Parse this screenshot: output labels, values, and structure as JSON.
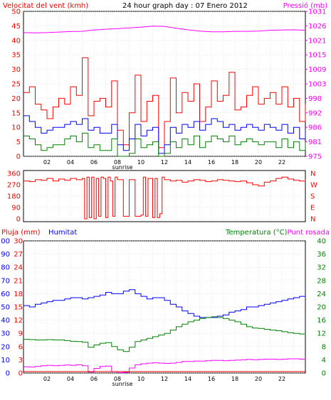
{
  "chart_data": [
    {
      "type": "line",
      "title": "24 hour graph day : 07 Enero 2012",
      "left_axis_label": "Velocitat del vent (kmh)",
      "right_axis_label": "Pressió (mb)",
      "left_ticks": [
        "0",
        "5",
        "10",
        "15",
        "20",
        "25",
        "30",
        "35",
        "40",
        "45",
        "50"
      ],
      "right_ticks": [
        "975",
        "981",
        "986",
        "992",
        "998",
        "1003",
        "1009",
        "1015",
        "1021",
        "1026",
        "1031"
      ],
      "ylim_left": [
        0,
        50
      ],
      "ylim_right": [
        975,
        1031
      ],
      "x_ticks": [
        "02",
        "04",
        "06",
        "08",
        "10",
        "12",
        "14",
        "16",
        "18",
        "20",
        "22"
      ],
      "x_annotation": "sunrise",
      "grid": true,
      "colors": {
        "gust": "#ff0000",
        "wind_avg": "#0000ff",
        "wind_min": "#008000",
        "pressure": "#ff00ff"
      },
      "series": [
        {
          "key": "pressure",
          "axis": "right",
          "x": [
            0,
            1,
            2,
            3,
            4,
            5,
            6,
            7,
            8,
            9,
            10,
            11,
            12,
            13,
            14,
            15,
            16,
            17,
            18,
            19,
            20,
            21,
            22,
            23,
            24
          ],
          "values": [
            1022.8,
            1022.7,
            1022.8,
            1023.0,
            1023.2,
            1023.3,
            1023.8,
            1024.1,
            1024.3,
            1024.6,
            1024.9,
            1025.3,
            1025.2,
            1024.5,
            1023.9,
            1023.4,
            1023.1,
            1023.1,
            1023.3,
            1023.3,
            1023.4,
            1023.7,
            1023.8,
            1023.9,
            1023.7
          ]
        },
        {
          "key": "gust",
          "axis": "left",
          "x": [
            0,
            0.5,
            1,
            1.5,
            2,
            2.5,
            3,
            3.5,
            4,
            4.5,
            5,
            5.5,
            6,
            6.5,
            7,
            7.5,
            8,
            8.5,
            9,
            9.5,
            10,
            10.5,
            11,
            11.5,
            12,
            12.5,
            13,
            13.5,
            14,
            14.5,
            15,
            15.5,
            16,
            16.5,
            17,
            17.5,
            18,
            18.5,
            19,
            19.5,
            20,
            20.5,
            21,
            21.5,
            22,
            22.5,
            23,
            23.5,
            24
          ],
          "values": [
            22,
            24,
            18,
            16,
            13,
            17,
            20,
            18,
            24,
            21,
            34,
            14,
            19,
            20,
            17,
            26,
            9,
            4,
            15,
            28,
            12,
            19,
            21,
            3,
            12,
            27,
            15,
            22,
            19,
            25,
            12,
            17,
            26,
            19,
            21,
            29,
            16,
            17,
            21,
            24,
            18,
            20,
            22,
            18,
            24,
            17,
            20,
            12,
            18
          ]
        },
        {
          "key": "wind_avg",
          "axis": "left",
          "x": [
            0,
            0.5,
            1,
            1.5,
            2,
            2.5,
            3,
            3.5,
            4,
            4.5,
            5,
            5.5,
            6,
            6.5,
            7,
            7.5,
            8,
            8.5,
            9,
            9.5,
            10,
            10.5,
            11,
            11.5,
            12,
            12.5,
            13,
            13.5,
            14,
            14.5,
            15,
            15.5,
            16,
            16.5,
            17,
            17.5,
            18,
            18.5,
            19,
            19.5,
            20,
            20.5,
            21,
            21.5,
            22,
            22.5,
            23,
            23.5,
            24
          ],
          "values": [
            14,
            12,
            10,
            8,
            9,
            10,
            10,
            11,
            12,
            11,
            13,
            9,
            10,
            8,
            8,
            11,
            4,
            2,
            6,
            11,
            7,
            9,
            10,
            1,
            4,
            10,
            8,
            11,
            10,
            12,
            9,
            11,
            13,
            12,
            10,
            11,
            9,
            10,
            11,
            10,
            9,
            11,
            10,
            9,
            11,
            8,
            10,
            6,
            9
          ]
        },
        {
          "key": "wind_min",
          "axis": "left",
          "x": [
            0,
            0.5,
            1,
            1.5,
            2,
            2.5,
            3,
            3.5,
            4,
            4.5,
            5,
            5.5,
            6,
            6.5,
            7,
            7.5,
            8,
            8.5,
            9,
            9.5,
            10,
            10.5,
            11,
            11.5,
            12,
            12.5,
            13,
            13.5,
            14,
            14.5,
            15,
            15.5,
            16,
            16.5,
            17,
            17.5,
            18,
            18.5,
            19,
            19.5,
            20,
            20.5,
            21,
            21.5,
            22,
            22.5,
            23,
            23.5,
            24
          ],
          "values": [
            7,
            6,
            4,
            2,
            3,
            4,
            4,
            6,
            7,
            5,
            8,
            3,
            4,
            2,
            2,
            6,
            0,
            0,
            1,
            6,
            3,
            4,
            5,
            0,
            1,
            5,
            3,
            6,
            4,
            7,
            3,
            5,
            7,
            6,
            5,
            7,
            4,
            5,
            6,
            5,
            4,
            5,
            5,
            3,
            6,
            3,
            5,
            2,
            5
          ]
        }
      ]
    },
    {
      "type": "line",
      "left_ticks": [
        "360",
        "270",
        "180",
        "90",
        "0"
      ],
      "ylim_left": [
        0,
        360
      ],
      "right_ticks": [
        "N",
        "W",
        "S",
        "E",
        "N"
      ],
      "grid": true,
      "colors": {
        "direction": "#ff0000"
      },
      "series": [
        {
          "key": "direction",
          "axis": "left",
          "x": [
            0,
            0.5,
            1,
            1.5,
            2,
            2.5,
            3,
            3.5,
            4,
            4.5,
            5,
            5.2,
            5.4,
            5.6,
            5.8,
            6,
            6.2,
            6.4,
            6.6,
            6.8,
            7,
            7.2,
            7.4,
            7.6,
            7.8,
            8,
            8.5,
            9,
            9.5,
            10,
            10.2,
            10.4,
            10.6,
            11,
            11.2,
            11.4,
            11.6,
            11.8,
            12,
            12.5,
            13,
            13.5,
            14,
            14.5,
            15,
            15.5,
            16,
            16.5,
            17,
            17.5,
            18,
            18.5,
            19,
            19.5,
            20,
            20.5,
            21,
            21.5,
            22,
            22.5,
            23,
            23.5,
            24
          ],
          "values": [
            300,
            295,
            310,
            305,
            320,
            300,
            315,
            305,
            320,
            310,
            320,
            0,
            330,
            10,
            330,
            0,
            320,
            20,
            330,
            320,
            10,
            330,
            300,
            20,
            330,
            310,
            20,
            310,
            20,
            30,
            330,
            20,
            320,
            10,
            320,
            10,
            40,
            330,
            310,
            300,
            305,
            290,
            300,
            310,
            305,
            295,
            300,
            310,
            305,
            300,
            295,
            300,
            285,
            270,
            260,
            290,
            300,
            320,
            330,
            315,
            305,
            300,
            310
          ]
        }
      ]
    },
    {
      "type": "line",
      "left_axis_label": "Pluja (mm)",
      "left_axis2_label": "Humitat",
      "right_axis_label": "Temperatura (°C)",
      "right_axis2_label": "Punt rosada",
      "left_ticks": [
        "0",
        "3",
        "6",
        "9",
        "12",
        "15",
        "18",
        "21",
        "24",
        "27",
        "30"
      ],
      "left2_ticks": [
        "0",
        "10",
        "20",
        "30",
        "40",
        "50",
        "60",
        "70",
        "80",
        "90",
        "100"
      ],
      "right_ticks": [
        "0",
        "4",
        "8",
        "12",
        "16",
        "20",
        "24",
        "28",
        "32",
        "36",
        "40"
      ],
      "ylim_rain": [
        0,
        30
      ],
      "ylim_humidity": [
        0,
        100
      ],
      "ylim_temp": [
        0,
        40
      ],
      "x_ticks": [
        "02",
        "04",
        "06",
        "08",
        "10",
        "12",
        "14",
        "16",
        "18",
        "20",
        "22"
      ],
      "x_annotation": "sunrise",
      "grid": true,
      "colors": {
        "rain": "#ff0000",
        "humidity": "#0000ff",
        "temperature": "#008000",
        "dewpoint": "#ff00ff"
      },
      "series": [
        {
          "key": "humidity",
          "axis": "humidity",
          "x": [
            0,
            0.5,
            1,
            1.5,
            2,
            2.5,
            3,
            3.5,
            4,
            4.5,
            5,
            5.5,
            6,
            6.5,
            7,
            7.5,
            8,
            8.5,
            9,
            9.5,
            10,
            10.5,
            11,
            11.5,
            12,
            12.5,
            13,
            13.5,
            14,
            14.5,
            15,
            15.5,
            16,
            16.5,
            17,
            17.5,
            18,
            18.5,
            19,
            19.5,
            20,
            20.5,
            21,
            21.5,
            22,
            22.5,
            23,
            23.5,
            24
          ],
          "values": [
            51,
            50,
            52,
            53,
            54,
            55,
            55,
            56,
            57,
            57,
            56,
            57,
            58,
            59,
            61,
            60,
            60,
            62,
            63,
            60,
            58,
            56,
            57,
            57,
            55,
            52,
            50,
            47,
            45,
            43,
            42,
            42,
            42,
            43,
            44,
            46,
            47,
            48,
            50,
            50,
            51,
            52,
            53,
            54,
            55,
            56,
            57,
            58,
            59
          ]
        },
        {
          "key": "temperature",
          "axis": "temp",
          "x": [
            0,
            0.5,
            1,
            1.5,
            2,
            2.5,
            3,
            3.5,
            4,
            4.5,
            5,
            5.5,
            6,
            6.5,
            7,
            7.5,
            8,
            8.5,
            9,
            9.5,
            10,
            10.5,
            11,
            11.5,
            12,
            12.5,
            13,
            13.5,
            14,
            14.5,
            15,
            15.5,
            16,
            16.5,
            17,
            17.5,
            18,
            18.5,
            19,
            19.5,
            20,
            20.5,
            21,
            21.5,
            22,
            22.5,
            23,
            23.5,
            24
          ],
          "values": [
            10.2,
            10.1,
            10.0,
            10.0,
            10.1,
            10.0,
            10.0,
            9.8,
            9.6,
            9.5,
            9.3,
            7.8,
            8.5,
            9.0,
            9.2,
            8.0,
            7.0,
            6.5,
            7.8,
            9.5,
            10.0,
            10.5,
            11.0,
            11.5,
            12.0,
            13.0,
            14.0,
            14.8,
            15.5,
            16.0,
            16.5,
            16.8,
            17.0,
            16.8,
            16.5,
            16.0,
            15.5,
            14.8,
            14.0,
            13.6,
            13.5,
            13.2,
            13.0,
            12.8,
            12.5,
            12.2,
            12.0,
            11.8,
            11.6
          ]
        },
        {
          "key": "dewpoint",
          "axis": "temp",
          "x": [
            0,
            0.5,
            1,
            1.5,
            2,
            2.5,
            3,
            3.5,
            4,
            4.5,
            5,
            5.5,
            6,
            6.5,
            7,
            7.5,
            8,
            8.5,
            9,
            9.5,
            10,
            10.5,
            11,
            11.5,
            12,
            12.5,
            13,
            13.5,
            14,
            14.5,
            15,
            15.5,
            16,
            16.5,
            17,
            17.5,
            18,
            18.5,
            19,
            19.5,
            20,
            20.5,
            21,
            21.5,
            22,
            22.5,
            23,
            23.5,
            24
          ],
          "values": [
            1.9,
            1.8,
            2.0,
            2.2,
            2.3,
            2.2,
            2.3,
            2.4,
            2.3,
            2.5,
            2.2,
            0.3,
            1.4,
            2.0,
            2.1,
            0.4,
            0.1,
            0.2,
            1.5,
            2.5,
            2.8,
            3.0,
            3.1,
            3.0,
            2.9,
            3.0,
            3.2,
            3.5,
            3.5,
            3.6,
            3.6,
            3.7,
            3.8,
            3.8,
            3.7,
            3.8,
            3.9,
            4.0,
            4.1,
            4.0,
            4.1,
            4.2,
            4.2,
            4.1,
            4.2,
            4.3,
            4.3,
            4.2,
            4.3
          ]
        },
        {
          "key": "rain",
          "axis": "rain",
          "x": [
            0,
            24
          ],
          "values": [
            0,
            0
          ]
        }
      ]
    }
  ]
}
